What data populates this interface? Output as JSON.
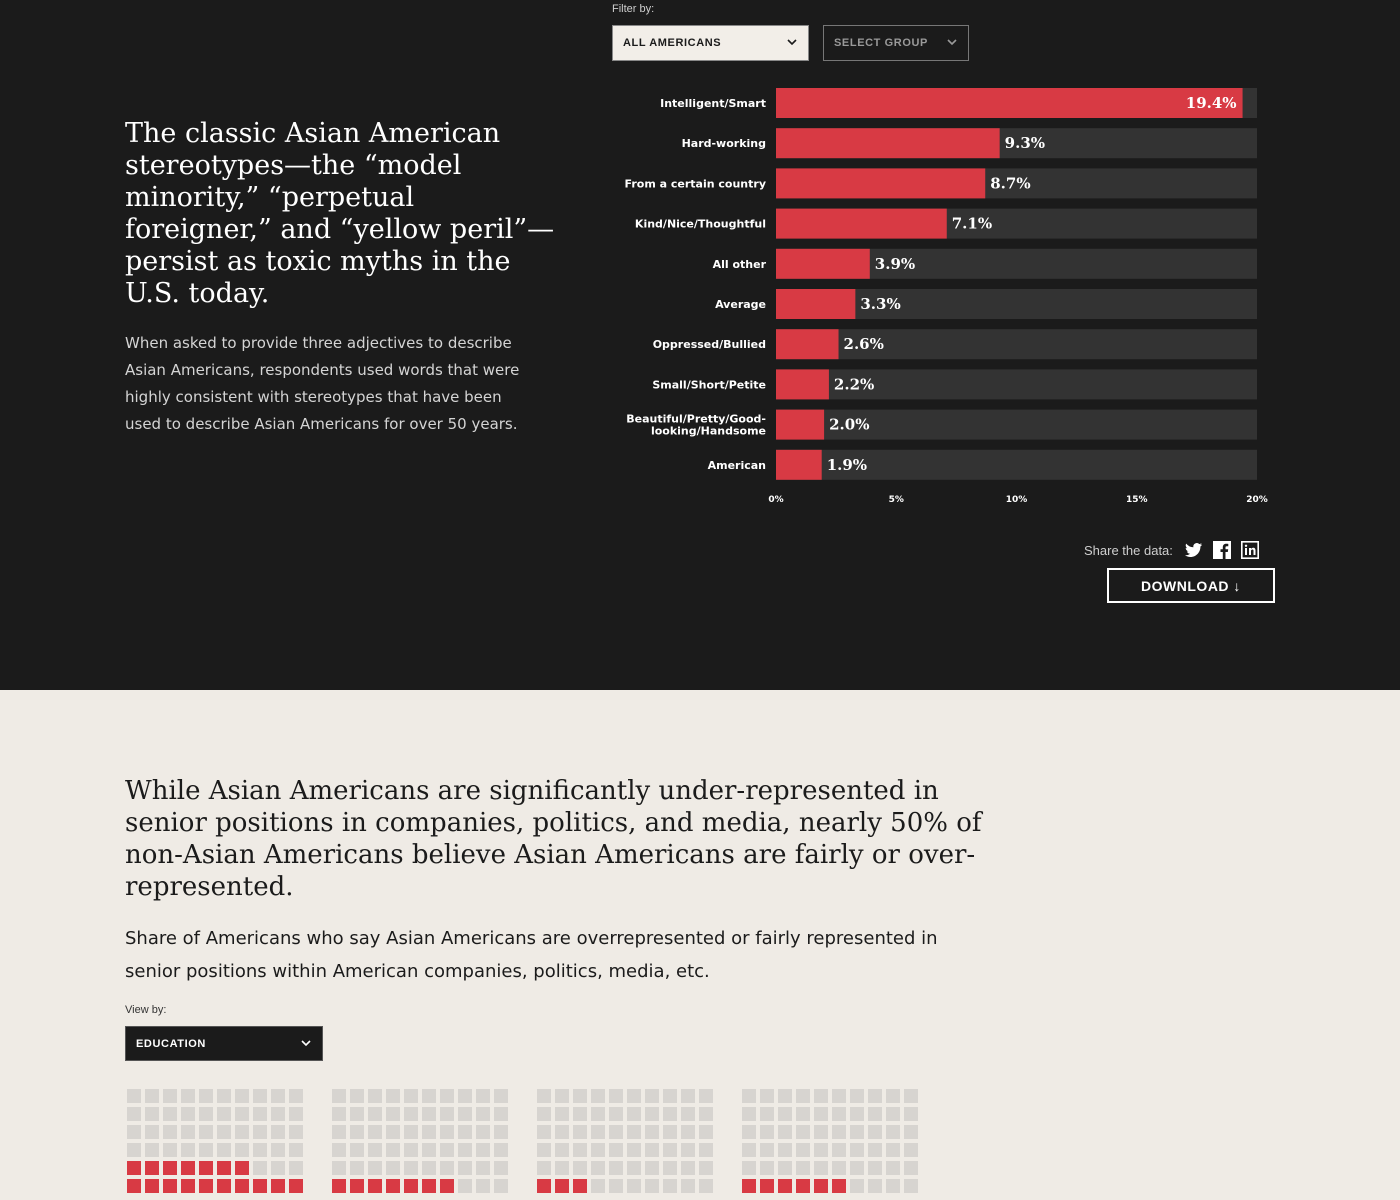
{
  "top_section": {
    "filter_label": "Filter by:",
    "filter_select": "ALL AMERICANS",
    "group_select": "SELECT GROUP",
    "headline": "The classic Asian American stereotypes—the “model minority,” “perpetual foreigner,” and “yellow peril”—persist as toxic myths in the U.S. today.",
    "description": "When asked to provide three adjectives to describe Asian Americans, respondents used words that were highly consistent with stereotypes that have been used to describe Asian Americans for over 50 years.",
    "share_label": "Share the data:",
    "share_icons": [
      "twitter-icon",
      "facebook-icon",
      "linkedin-icon"
    ],
    "download_label": "DOWNLOAD ↓"
  },
  "chart_data": {
    "type": "bar",
    "orientation": "horizontal",
    "categories": [
      "Intelligent/Smart",
      "Hard-working",
      "From a certain country",
      "Kind/Nice/Thoughtful",
      "All other",
      "Average",
      "Oppressed/Bullied",
      "Small/Short/Petite",
      "Beautiful/Pretty/Good-looking/Handsome",
      "American"
    ],
    "category_label_lines": [
      [
        "Intelligent/Smart"
      ],
      [
        "Hard-working"
      ],
      [
        "From a certain country"
      ],
      [
        "Kind/Nice/Thoughtful"
      ],
      [
        "All other"
      ],
      [
        "Average"
      ],
      [
        "Oppressed/Bullied"
      ],
      [
        "Small/Short/Petite"
      ],
      [
        "Beautiful/Pretty/Good-",
        "looking/Handsome"
      ],
      [
        "American"
      ]
    ],
    "values": [
      19.4,
      9.3,
      8.7,
      7.1,
      3.9,
      3.3,
      2.6,
      2.2,
      2.0,
      1.9
    ],
    "value_labels": [
      "19.4%",
      "9.3%",
      "8.7%",
      "7.1%",
      "3.9%",
      "3.3%",
      "2.6%",
      "2.2%",
      "2.0%",
      "1.9%"
    ],
    "xlim": [
      0,
      20
    ],
    "xticks": [
      0,
      5,
      10,
      15,
      20
    ],
    "xtick_labels": [
      "0%",
      "5%",
      "10%",
      "15%",
      "20%"
    ],
    "bar_color": "#d83a44",
    "track_color": "#333333",
    "grid": false
  },
  "bottom_section": {
    "headline": "While Asian Americans are significantly under-represented in senior positions in companies, politics, and media, nearly 50% of non-Asian Americans believe Asian Americans are fairly or over-represented.",
    "subheadline": "Share of Americans who say Asian Americans are overrepresented or fairly represented in senior positions within American companies, politics, media, etc.",
    "view_label": "View by:",
    "view_select": "EDUCATION",
    "waffles": [
      {
        "visible_rows": [
          [
            0,
            0,
            0,
            0,
            0,
            0,
            0,
            0,
            0,
            0
          ],
          [
            0,
            0,
            0,
            0,
            0,
            0,
            0,
            0,
            0,
            0
          ],
          [
            0,
            0,
            0,
            0,
            0,
            0,
            0,
            0,
            0,
            0
          ],
          [
            0,
            0,
            0,
            0,
            0,
            0,
            0,
            0,
            0,
            0
          ],
          [
            1,
            1,
            1,
            1,
            1,
            1,
            1,
            0,
            0,
            0
          ],
          [
            1,
            1,
            1,
            1,
            1,
            1,
            1,
            1,
            1,
            1
          ]
        ]
      },
      {
        "visible_rows": [
          [
            0,
            0,
            0,
            0,
            0,
            0,
            0,
            0,
            0,
            0
          ],
          [
            0,
            0,
            0,
            0,
            0,
            0,
            0,
            0,
            0,
            0
          ],
          [
            0,
            0,
            0,
            0,
            0,
            0,
            0,
            0,
            0,
            0
          ],
          [
            0,
            0,
            0,
            0,
            0,
            0,
            0,
            0,
            0,
            0
          ],
          [
            0,
            0,
            0,
            0,
            0,
            0,
            0,
            0,
            0,
            0
          ],
          [
            1,
            1,
            1,
            1,
            1,
            1,
            1,
            0,
            0,
            0
          ]
        ]
      },
      {
        "visible_rows": [
          [
            0,
            0,
            0,
            0,
            0,
            0,
            0,
            0,
            0,
            0
          ],
          [
            0,
            0,
            0,
            0,
            0,
            0,
            0,
            0,
            0,
            0
          ],
          [
            0,
            0,
            0,
            0,
            0,
            0,
            0,
            0,
            0,
            0
          ],
          [
            0,
            0,
            0,
            0,
            0,
            0,
            0,
            0,
            0,
            0
          ],
          [
            0,
            0,
            0,
            0,
            0,
            0,
            0,
            0,
            0,
            0
          ],
          [
            1,
            1,
            1,
            0,
            0,
            0,
            0,
            0,
            0,
            0
          ]
        ]
      },
      {
        "visible_rows": [
          [
            0,
            0,
            0,
            0,
            0,
            0,
            0,
            0,
            0,
            0
          ],
          [
            0,
            0,
            0,
            0,
            0,
            0,
            0,
            0,
            0,
            0
          ],
          [
            0,
            0,
            0,
            0,
            0,
            0,
            0,
            0,
            0,
            0
          ],
          [
            0,
            0,
            0,
            0,
            0,
            0,
            0,
            0,
            0,
            0
          ],
          [
            0,
            0,
            0,
            0,
            0,
            0,
            0,
            0,
            0,
            0
          ],
          [
            1,
            1,
            1,
            1,
            1,
            1,
            0,
            0,
            0,
            0
          ]
        ]
      }
    ]
  }
}
